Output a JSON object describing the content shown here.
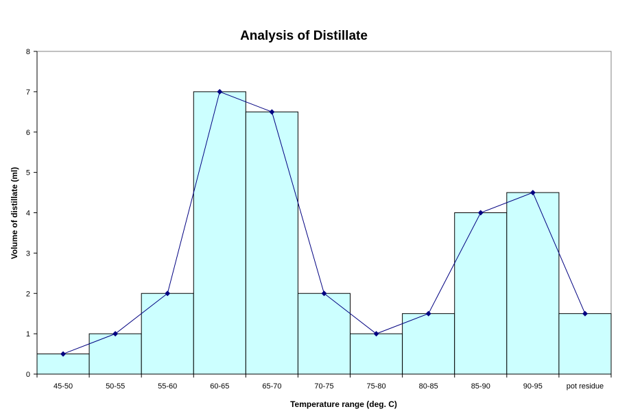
{
  "chart_data": {
    "type": "bar",
    "title": "Analysis of Distillate",
    "xlabel": "Temperature range (deg. C)",
    "ylabel": "Volume of distillate (ml)",
    "categories": [
      "45-50",
      "50-55",
      "55-60",
      "60-65",
      "65-70",
      "70-75",
      "75-80",
      "80-85",
      "85-90",
      "90-95",
      "pot residue"
    ],
    "values": [
      0.5,
      1,
      2,
      7,
      6.5,
      2,
      1,
      1.5,
      4,
      4.5,
      1.5
    ],
    "line_overlay": {
      "values": [
        0.5,
        1,
        2,
        7,
        6.5,
        2,
        1,
        1.5,
        4,
        4.5,
        1.5
      ],
      "marker": "diamond"
    },
    "ylim": [
      0,
      8
    ],
    "yticks": [
      0,
      1,
      2,
      3,
      4,
      5,
      6,
      7,
      8
    ],
    "grid": false,
    "legend": "none",
    "colors": {
      "bar_fill": "#CCFFFF",
      "bar_stroke": "#000000",
      "line": "#000080"
    }
  }
}
